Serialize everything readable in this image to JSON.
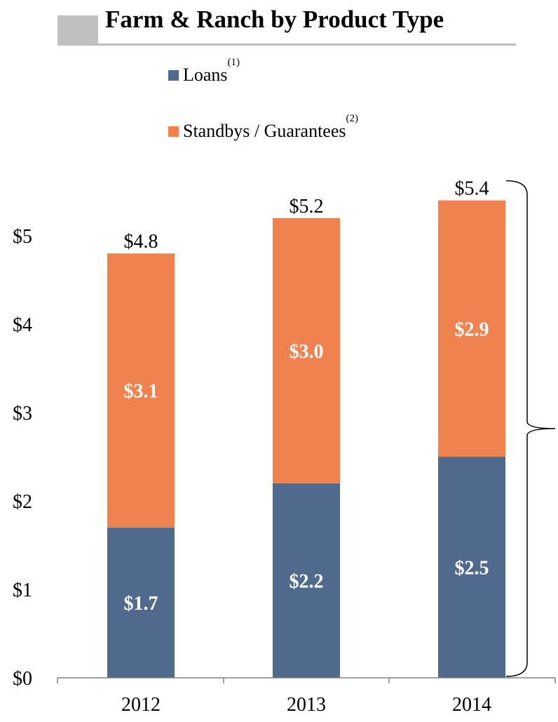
{
  "title": "Farm & Ranch by Product Type",
  "colors": {
    "loans": "#4f6a8d",
    "standbys": "#f08250",
    "title_box": "#c0c0c0"
  },
  "legend": [
    {
      "label": "Loans",
      "sup": "(1)",
      "color": "#4f6a8d"
    },
    {
      "label": "Standbys / Guarantees",
      "sup": "(2)",
      "color": "#f08250"
    }
  ],
  "chart_data": {
    "type": "bar",
    "stacked": true,
    "categories": [
      "2012",
      "2013",
      "2014"
    ],
    "series": [
      {
        "name": "Loans",
        "values": [
          1.7,
          2.2,
          2.5
        ],
        "labels": [
          "$1.7",
          "$2.2",
          "$2.5"
        ],
        "color": "#4f6a8d"
      },
      {
        "name": "Standbys / Guarantees",
        "values": [
          3.1,
          3.0,
          2.9
        ],
        "labels": [
          "$3.1",
          "$3.0",
          "$2.9"
        ],
        "color": "#f08250"
      }
    ],
    "totals": [
      4.8,
      5.2,
      5.4
    ],
    "total_labels": [
      "$4.8",
      "$5.2",
      "$5.4"
    ],
    "ylim": [
      0,
      5
    ],
    "yticks": [
      0,
      1,
      2,
      3,
      4,
      5
    ],
    "ytick_labels": [
      "$0",
      "$1",
      "$2",
      "$3",
      "$4",
      "$5"
    ],
    "grid": false,
    "legend_position": "top",
    "bracket_on": "2014"
  }
}
